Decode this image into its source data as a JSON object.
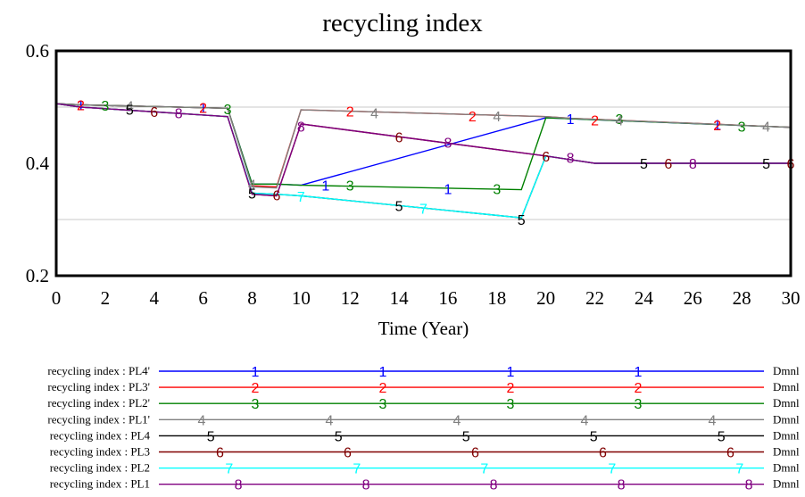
{
  "chart_data": {
    "type": "line",
    "title": "recycling index",
    "xlabel": "Time (Year)",
    "ylabel": "",
    "xlim": [
      0,
      30
    ],
    "ylim": [
      0.2,
      0.6
    ],
    "x_ticks": [
      0,
      2,
      4,
      6,
      8,
      10,
      12,
      14,
      16,
      18,
      20,
      22,
      24,
      26,
      28,
      30
    ],
    "y_ticks": [
      0.2,
      0.4,
      0.6
    ],
    "y_tick_labels": [
      "0.2",
      "0.4",
      "0.6"
    ],
    "grid": true,
    "legend_position": "bottom",
    "units": "Dmnl",
    "series": [
      {
        "name": "recycling index : PL4'",
        "marker": "1",
        "color": "#0000ff",
        "points": [
          [
            0,
            0.506
          ],
          [
            1,
            0.504
          ],
          [
            7,
            0.498
          ],
          [
            8,
            0.363
          ],
          [
            9,
            0.363
          ],
          [
            10,
            0.361
          ],
          [
            20,
            0.481
          ],
          [
            30,
            0.464
          ]
        ]
      },
      {
        "name": "recycling index : PL3'",
        "marker": "2",
        "color": "#ff0000",
        "points": [
          [
            0,
            0.506
          ],
          [
            1,
            0.504
          ],
          [
            7,
            0.498
          ],
          [
            8,
            0.36
          ],
          [
            9,
            0.358
          ],
          [
            10,
            0.495
          ],
          [
            20,
            0.483
          ],
          [
            21,
            0.48
          ],
          [
            30,
            0.464
          ]
        ]
      },
      {
        "name": "recycling index : PL2'",
        "marker": "3",
        "color": "#008000",
        "points": [
          [
            0,
            0.506
          ],
          [
            1,
            0.504
          ],
          [
            7,
            0.498
          ],
          [
            8,
            0.363
          ],
          [
            9,
            0.363
          ],
          [
            10,
            0.361
          ],
          [
            19,
            0.353
          ],
          [
            20,
            0.481
          ],
          [
            30,
            0.464
          ]
        ]
      },
      {
        "name": "recycling index : PL1'",
        "marker": "4",
        "color": "#808080",
        "points": [
          [
            0,
            0.506
          ],
          [
            1,
            0.504
          ],
          [
            7,
            0.498
          ],
          [
            8,
            0.358
          ],
          [
            9,
            0.356
          ],
          [
            10,
            0.495
          ],
          [
            20,
            0.483
          ],
          [
            21,
            0.48
          ],
          [
            30,
            0.464
          ]
        ]
      },
      {
        "name": "recycling index : PL4",
        "marker": "5",
        "color": "#000000",
        "points": [
          [
            0,
            0.506
          ],
          [
            1,
            0.5
          ],
          [
            7,
            0.483
          ],
          [
            8,
            0.347
          ],
          [
            9,
            0.345
          ],
          [
            10,
            0.342
          ],
          [
            19,
            0.303
          ],
          [
            20,
            0.413
          ],
          [
            22,
            0.4
          ],
          [
            30,
            0.4
          ]
        ]
      },
      {
        "name": "recycling index : PL3",
        "marker": "6",
        "color": "#800000",
        "points": [
          [
            0,
            0.506
          ],
          [
            1,
            0.5
          ],
          [
            7,
            0.483
          ],
          [
            8,
            0.345
          ],
          [
            9,
            0.342
          ],
          [
            10,
            0.47
          ],
          [
            20,
            0.413
          ],
          [
            22,
            0.4
          ],
          [
            30,
            0.4
          ]
        ]
      },
      {
        "name": "recycling index : PL2",
        "marker": "7",
        "color": "#00ffff",
        "points": [
          [
            0,
            0.506
          ],
          [
            1,
            0.5
          ],
          [
            7,
            0.483
          ],
          [
            8,
            0.347
          ],
          [
            9,
            0.345
          ],
          [
            10,
            0.342
          ],
          [
            19,
            0.303
          ],
          [
            20,
            0.413
          ],
          [
            22,
            0.4
          ],
          [
            30,
            0.4
          ]
        ]
      },
      {
        "name": "recycling index : PL1",
        "marker": "8",
        "color": "#800080",
        "points": [
          [
            0,
            0.506
          ],
          [
            1,
            0.5
          ],
          [
            7,
            0.483
          ],
          [
            8,
            0.345
          ],
          [
            9,
            0.342
          ],
          [
            10,
            0.47
          ],
          [
            20,
            0.413
          ],
          [
            22,
            0.4
          ],
          [
            30,
            0.4
          ]
        ]
      }
    ],
    "plot_markers": [
      {
        "label": "1",
        "x": 1,
        "y": 0.504,
        "color": "#0000ff"
      },
      {
        "label": "1",
        "x": 6,
        "y": 0.499,
        "color": "#0000ff"
      },
      {
        "label": "1",
        "x": 11,
        "y": 0.361,
        "color": "#0000ff"
      },
      {
        "label": "1",
        "x": 16,
        "y": 0.355,
        "color": "#0000ff"
      },
      {
        "label": "1",
        "x": 21,
        "y": 0.479,
        "color": "#0000ff"
      },
      {
        "label": "1",
        "x": 27,
        "y": 0.469,
        "color": "#0000ff"
      },
      {
        "label": "2",
        "x": 1,
        "y": 0.504,
        "color": "#ff0000"
      },
      {
        "label": "2",
        "x": 6,
        "y": 0.499,
        "color": "#ff0000"
      },
      {
        "label": "2",
        "x": 12,
        "y": 0.493,
        "color": "#ff0000"
      },
      {
        "label": "2",
        "x": 17,
        "y": 0.484,
        "color": "#ff0000"
      },
      {
        "label": "2",
        "x": 22,
        "y": 0.477,
        "color": "#ff0000"
      },
      {
        "label": "2",
        "x": 27,
        "y": 0.468,
        "color": "#ff0000"
      },
      {
        "label": "3",
        "x": 2,
        "y": 0.503,
        "color": "#008000"
      },
      {
        "label": "3",
        "x": 7,
        "y": 0.497,
        "color": "#008000"
      },
      {
        "label": "3",
        "x": 12,
        "y": 0.361,
        "color": "#008000"
      },
      {
        "label": "3",
        "x": 18,
        "y": 0.355,
        "color": "#008000"
      },
      {
        "label": "3",
        "x": 23,
        "y": 0.479,
        "color": "#008000"
      },
      {
        "label": "3",
        "x": 28,
        "y": 0.466,
        "color": "#008000"
      },
      {
        "label": "4",
        "x": 3,
        "y": 0.502,
        "color": "#808080"
      },
      {
        "label": "4",
        "x": 8,
        "y": 0.363,
        "color": "#808080"
      },
      {
        "label": "4",
        "x": 13,
        "y": 0.49,
        "color": "#808080"
      },
      {
        "label": "4",
        "x": 18,
        "y": 0.484,
        "color": "#808080"
      },
      {
        "label": "4",
        "x": 23,
        "y": 0.477,
        "color": "#808080"
      },
      {
        "label": "4",
        "x": 29,
        "y": 0.466,
        "color": "#808080"
      },
      {
        "label": "5",
        "x": 3,
        "y": 0.496,
        "color": "#000000"
      },
      {
        "label": "5",
        "x": 8,
        "y": 0.347,
        "color": "#000000"
      },
      {
        "label": "5",
        "x": 14,
        "y": 0.325,
        "color": "#000000"
      },
      {
        "label": "5",
        "x": 19,
        "y": 0.3,
        "color": "#000000"
      },
      {
        "label": "5",
        "x": 24,
        "y": 0.4,
        "color": "#000000"
      },
      {
        "label": "5",
        "x": 29,
        "y": 0.4,
        "color": "#000000"
      },
      {
        "label": "6",
        "x": 4,
        "y": 0.492,
        "color": "#800000"
      },
      {
        "label": "6",
        "x": 9,
        "y": 0.344,
        "color": "#800000"
      },
      {
        "label": "6",
        "x": 14,
        "y": 0.447,
        "color": "#800000"
      },
      {
        "label": "6",
        "x": 20,
        "y": 0.413,
        "color": "#800000"
      },
      {
        "label": "6",
        "x": 25,
        "y": 0.4,
        "color": "#800000"
      },
      {
        "label": "6",
        "x": 30,
        "y": 0.4,
        "color": "#800000"
      },
      {
        "label": "7",
        "x": 10,
        "y": 0.341,
        "color": "#00ffff"
      },
      {
        "label": "7",
        "x": 15,
        "y": 0.32,
        "color": "#00ffff"
      },
      {
        "label": "8",
        "x": 5,
        "y": 0.49,
        "color": "#800080"
      },
      {
        "label": "8",
        "x": 10,
        "y": 0.466,
        "color": "#800080"
      },
      {
        "label": "8",
        "x": 16,
        "y": 0.437,
        "color": "#800080"
      },
      {
        "label": "8",
        "x": 21,
        "y": 0.41,
        "color": "#800080"
      },
      {
        "label": "8",
        "x": 26,
        "y": 0.4,
        "color": "#800080"
      }
    ],
    "legend_markers": [
      {
        "label": "1",
        "count": 4
      },
      {
        "label": "2",
        "count": 4
      },
      {
        "label": "3",
        "count": 4
      },
      {
        "label": "4",
        "count": 5
      },
      {
        "label": "5",
        "count": 5
      },
      {
        "label": "6",
        "count": 5
      },
      {
        "label": "7",
        "count": 5
      },
      {
        "label": "8",
        "count": 5
      }
    ]
  }
}
